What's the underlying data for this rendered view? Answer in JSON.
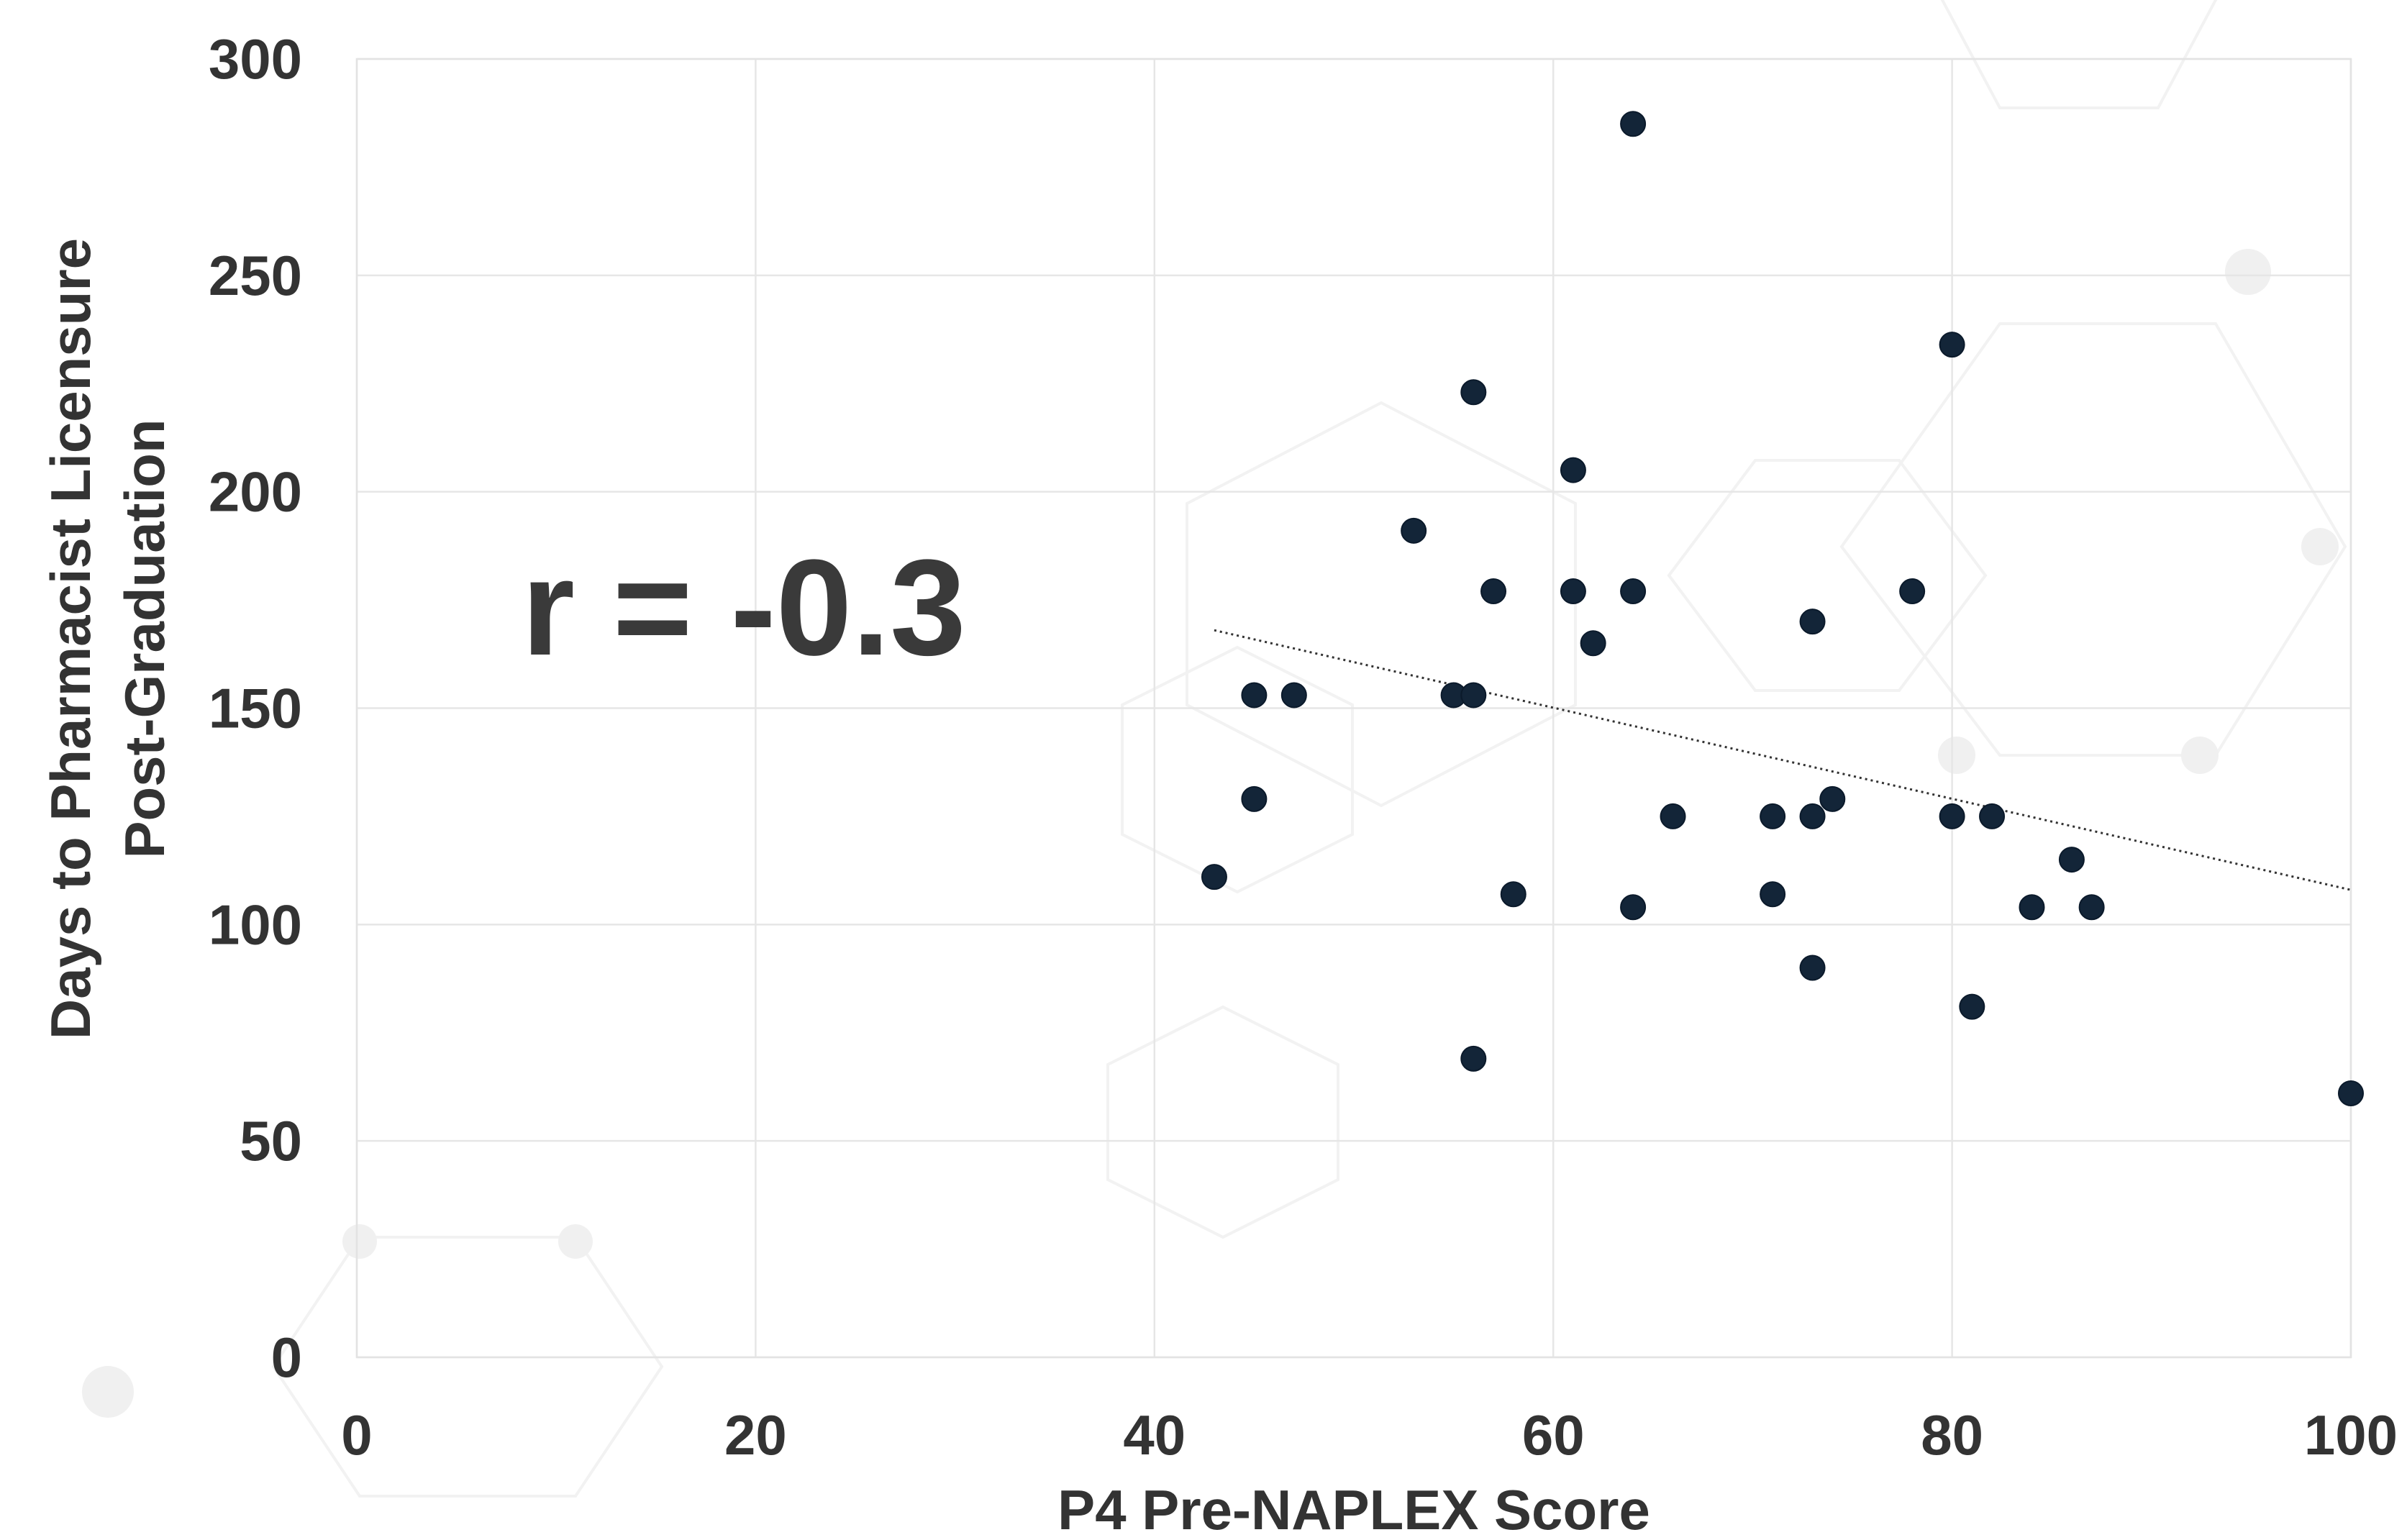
{
  "chart_data": {
    "type": "scatter",
    "xlabel": "P4 Pre-NAPLEX Score",
    "ylabel_lines": [
      "Days to Pharmacist Licensure",
      "Post-Graduation"
    ],
    "annotation": "r = -0.3",
    "xlim": [
      0,
      100
    ],
    "ylim": [
      0,
      300
    ],
    "x_ticks": [
      0,
      20,
      40,
      60,
      80,
      100
    ],
    "y_ticks": [
      0,
      50,
      100,
      150,
      200,
      250,
      300
    ],
    "grid": true,
    "marker_color": "#132538",
    "trendline": {
      "style": "dotted",
      "color": "#333333",
      "x_start": 43,
      "y_start": 168,
      "x_end": 100,
      "y_end": 108
    },
    "points": [
      {
        "x": 43,
        "y": 111
      },
      {
        "x": 45,
        "y": 153
      },
      {
        "x": 45,
        "y": 129
      },
      {
        "x": 47,
        "y": 153
      },
      {
        "x": 53,
        "y": 191
      },
      {
        "x": 55,
        "y": 153
      },
      {
        "x": 56,
        "y": 153
      },
      {
        "x": 56,
        "y": 223
      },
      {
        "x": 56,
        "y": 69
      },
      {
        "x": 57,
        "y": 177
      },
      {
        "x": 58,
        "y": 107
      },
      {
        "x": 61,
        "y": 205
      },
      {
        "x": 61,
        "y": 177
      },
      {
        "x": 62,
        "y": 165
      },
      {
        "x": 64,
        "y": 285
      },
      {
        "x": 64,
        "y": 177
      },
      {
        "x": 64,
        "y": 104
      },
      {
        "x": 66,
        "y": 125
      },
      {
        "x": 71,
        "y": 125
      },
      {
        "x": 71,
        "y": 107
      },
      {
        "x": 73,
        "y": 170
      },
      {
        "x": 73,
        "y": 125
      },
      {
        "x": 73,
        "y": 90
      },
      {
        "x": 74,
        "y": 129
      },
      {
        "x": 78,
        "y": 177
      },
      {
        "x": 80,
        "y": 234
      },
      {
        "x": 80,
        "y": 125
      },
      {
        "x": 81,
        "y": 81
      },
      {
        "x": 82,
        "y": 125
      },
      {
        "x": 84,
        "y": 104
      },
      {
        "x": 86,
        "y": 115
      },
      {
        "x": 87,
        "y": 104
      },
      {
        "x": 100,
        "y": 61
      }
    ]
  }
}
